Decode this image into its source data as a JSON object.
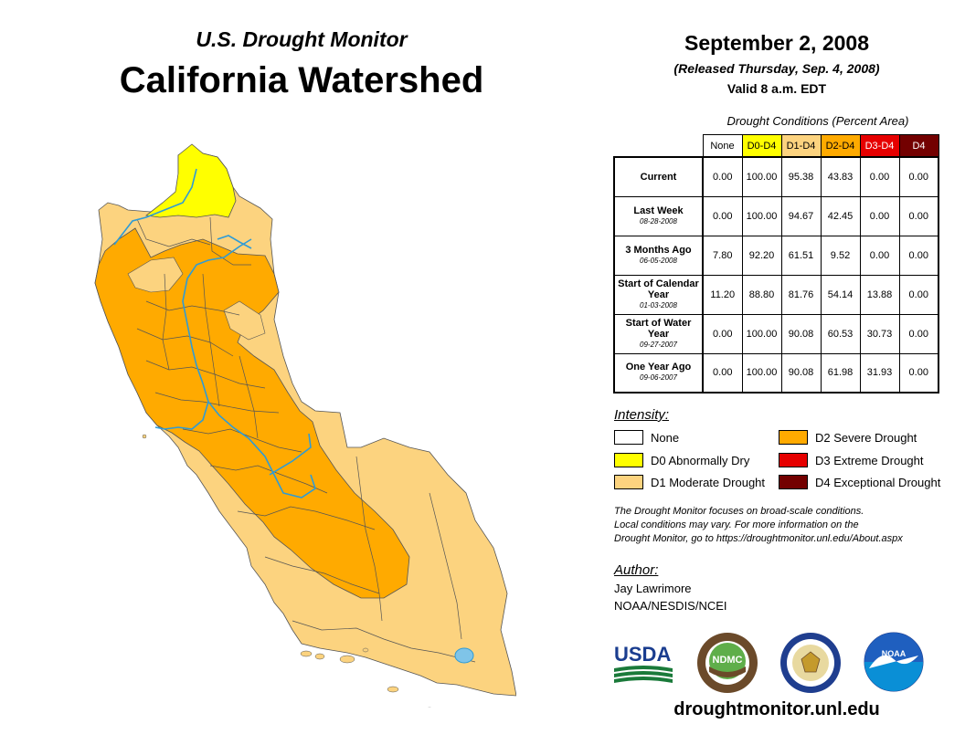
{
  "header": {
    "subtitle": "U.S. Drought Monitor",
    "title": "California Watershed",
    "date": "September 2, 2008",
    "released": "(Released Thursday, Sep. 4, 2008)",
    "valid": "Valid 8 a.m. EDT"
  },
  "table": {
    "caption": "Drought Conditions (Percent Area)",
    "columns": [
      {
        "label": "None",
        "color": "#ffffff",
        "text_color": "#000000"
      },
      {
        "label": "D0-D4",
        "color": "#ffff00",
        "text_color": "#000000"
      },
      {
        "label": "D1-D4",
        "color": "#fcd37f",
        "text_color": "#000000"
      },
      {
        "label": "D2-D4",
        "color": "#ffaa00",
        "text_color": "#000000"
      },
      {
        "label": "D3-D4",
        "color": "#e60000",
        "text_color": "#ffffff"
      },
      {
        "label": "D4",
        "color": "#730000",
        "text_color": "#ffffff"
      }
    ],
    "rows": [
      {
        "label": "Current",
        "date": "",
        "values": [
          "0.00",
          "100.00",
          "95.38",
          "43.83",
          "0.00",
          "0.00"
        ]
      },
      {
        "label": "Last Week",
        "date": "08-28-2008",
        "values": [
          "0.00",
          "100.00",
          "94.67",
          "42.45",
          "0.00",
          "0.00"
        ]
      },
      {
        "label": "3 Months Ago",
        "date": "06-05-2008",
        "values": [
          "7.80",
          "92.20",
          "61.51",
          "9.52",
          "0.00",
          "0.00"
        ]
      },
      {
        "label": "Start of Calendar Year",
        "date": "01-03-2008",
        "values": [
          "11.20",
          "88.80",
          "81.76",
          "54.14",
          "13.88",
          "0.00"
        ]
      },
      {
        "label": "Start of Water Year",
        "date": "09-27-2007",
        "values": [
          "0.00",
          "100.00",
          "90.08",
          "60.53",
          "30.73",
          "0.00"
        ]
      },
      {
        "label": "One Year Ago",
        "date": "09-06-2007",
        "values": [
          "0.00",
          "100.00",
          "90.08",
          "61.98",
          "31.93",
          "0.00"
        ]
      }
    ]
  },
  "legend": {
    "title": "Intensity:",
    "items": [
      {
        "label": "None",
        "color": "#ffffff"
      },
      {
        "label": "D0 Abnormally Dry",
        "color": "#ffff00"
      },
      {
        "label": "D1 Moderate Drought",
        "color": "#fcd37f"
      },
      {
        "label": "D2 Severe Drought",
        "color": "#ffaa00"
      },
      {
        "label": "D3 Extreme Drought",
        "color": "#e60000"
      },
      {
        "label": "D4 Exceptional Drought",
        "color": "#730000"
      }
    ]
  },
  "note": {
    "line1": "The Drought Monitor focuses on broad-scale conditions.",
    "line2": "Local conditions may vary. For more information on the",
    "line3": "Drought Monitor, go to https://droughtmonitor.unl.edu/About.aspx"
  },
  "author": {
    "title": "Author:",
    "name": "Jay Lawrimore",
    "org": "NOAA/NESDIS/NCEI"
  },
  "logos": {
    "usda": "USDA",
    "ndmc": "NDMC",
    "noaa": "NOAA"
  },
  "website": "droughtmonitor.unl.edu",
  "map_colors": {
    "d0": "#ffff00",
    "d1": "#fcd37f",
    "d2": "#ffaa00",
    "river": "#2e9bd6"
  }
}
